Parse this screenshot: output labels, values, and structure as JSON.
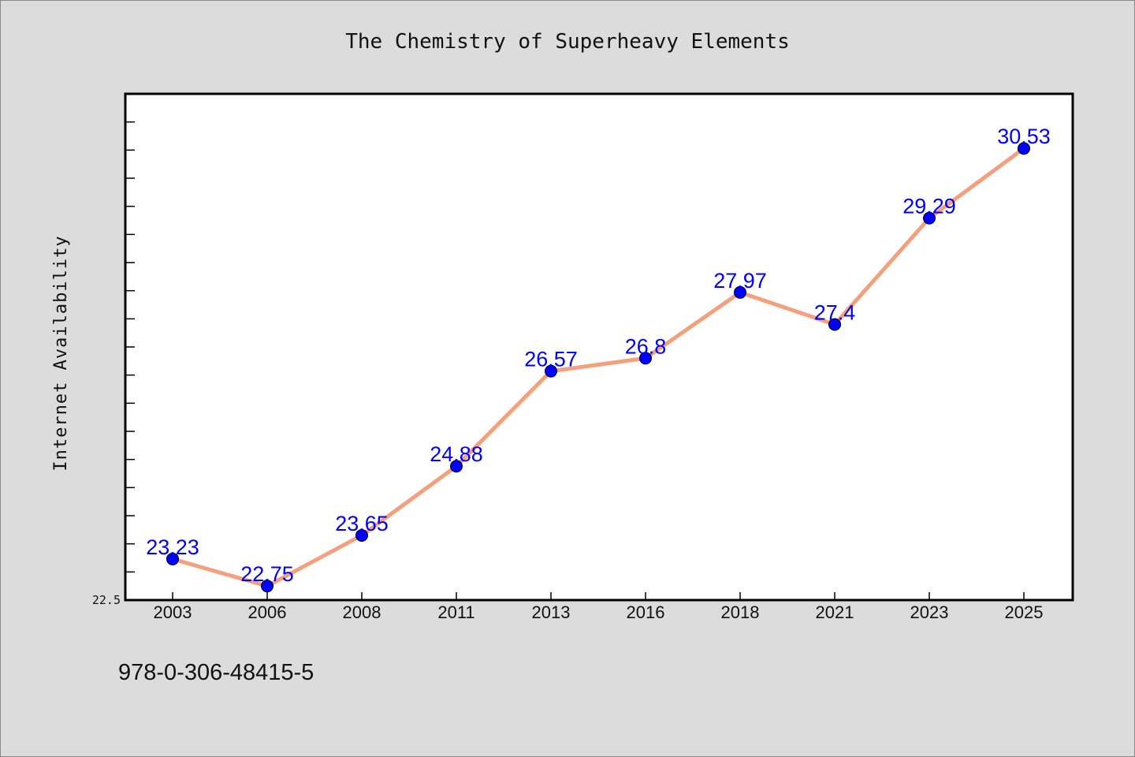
{
  "chart_data": {
    "type": "line",
    "title": "The Chemistry of Superheavy Elements",
    "xlabel": "",
    "ylabel": "Internet Availability",
    "categories": [
      "2003",
      "2006",
      "2008",
      "2011",
      "2013",
      "2016",
      "2018",
      "2021",
      "2023",
      "2025"
    ],
    "series": [
      {
        "values": [
          23.23,
          22.75,
          23.65,
          24.88,
          26.57,
          26.8,
          27.97,
          27.4,
          29.29,
          30.53
        ],
        "labels": [
          "23.23",
          "22.75",
          "23.65",
          "24.88",
          "26.57",
          "26.8",
          "27.97",
          "27.4",
          "29.29",
          "30.53"
        ]
      }
    ],
    "ylim": [
      22.5,
      31.5
    ],
    "y_tick_labels": [
      "22.5"
    ],
    "grid": false,
    "legend": "none",
    "colors": {
      "line": "#f4a07e",
      "marker": "#0000ff",
      "data_label": "#0000ff",
      "background": "#dcdcdc",
      "plot_background": "#ffffff"
    }
  },
  "footer": {
    "text": "978-0-306-48415-5"
  }
}
